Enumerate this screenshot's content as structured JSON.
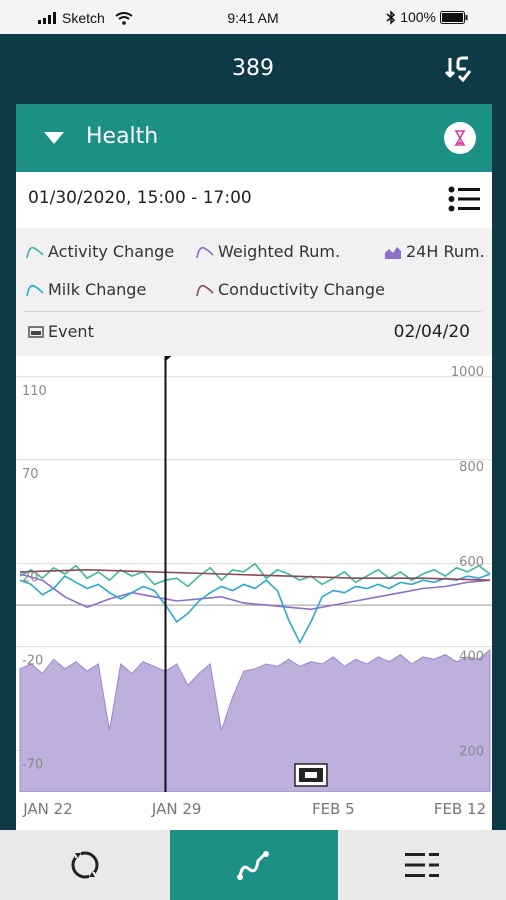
{
  "status_bar": {
    "carrier": "Sketch",
    "time": "9:41 AM",
    "battery": "100%"
  },
  "header": {
    "title": "389",
    "swap_icon": "swap-icon"
  },
  "card": {
    "title": "Health",
    "expand_icon": "triangle-down-icon",
    "badge_icon": "hourglass-icon",
    "date_range": "01/30/2020,  15:00 - 17:00",
    "menu_icon": "list-icon"
  },
  "legend": {
    "activity": "Activity Change",
    "weighted": "Weighted Rum.",
    "h24": "24H Rum.",
    "milk": "Milk Change",
    "conductivity": "Conductivity Change",
    "event": "Event",
    "event_date": "02/04/20"
  },
  "colors": {
    "accent": "#1c9084",
    "dark": "#0d3a46",
    "activity": "#3db8a3",
    "weighted": "#8d6fc9",
    "milk": "#2ba9d0",
    "conductivity": "#8b4a57",
    "rum24_fill": "#bfafdc"
  },
  "chart_data": {
    "type": "line",
    "x_labels": [
      "JAN 22",
      "JAN 29",
      "FEB 5",
      "FEB 12"
    ],
    "left_axis": {
      "ticks": [
        "110",
        "70",
        "20",
        "-20",
        "-70"
      ],
      "values": [
        110,
        70,
        20,
        -20,
        -70
      ],
      "range": [
        -90,
        120
      ]
    },
    "right_axis": {
      "ticks": [
        "1000",
        "800",
        "600",
        "400",
        "200"
      ],
      "values": [
        1000,
        800,
        600,
        400,
        200
      ],
      "range": [
        110,
        1030
      ]
    },
    "x_range": [
      0,
      21
    ],
    "cursor_day": 6.5,
    "event_day": 13,
    "series": [
      {
        "name": "Activity Change",
        "axis": "left",
        "x": [
          0,
          0.5,
          1,
          1.5,
          2,
          2.5,
          3,
          3.5,
          4,
          4.5,
          5,
          5.5,
          6,
          6.5,
          7,
          7.5,
          8,
          8.5,
          9,
          9.5,
          10,
          10.5,
          11,
          11.5,
          12,
          12.5,
          13,
          13.5,
          14,
          14.5,
          15,
          15.5,
          16,
          16.5,
          17,
          17.5,
          18,
          18.5,
          19,
          19.5,
          20,
          20.5,
          21
        ],
        "y": [
          14,
          17,
          13,
          18,
          15,
          19,
          13,
          16,
          12,
          17,
          14,
          16,
          10,
          12,
          13,
          9,
          14,
          18,
          12,
          17,
          16,
          20,
          13,
          17,
          15,
          12,
          14,
          10,
          13,
          16,
          11,
          14,
          17,
          13,
          16,
          12,
          15,
          17,
          14,
          18,
          16,
          19,
          15
        ]
      },
      {
        "name": "Weighted Rum.",
        "axis": "left",
        "x": [
          0,
          1,
          2,
          3,
          4,
          5,
          6,
          7,
          8,
          9,
          10,
          11,
          12,
          13,
          14,
          15,
          16,
          17,
          18,
          19,
          20,
          21
        ],
        "y": [
          15,
          12,
          4,
          -1,
          3,
          6,
          4,
          2,
          3,
          4,
          1,
          0,
          -1,
          -2,
          0,
          2,
          4,
          6,
          8,
          9,
          11,
          12
        ]
      },
      {
        "name": "Milk Change",
        "axis": "left",
        "x": [
          0,
          0.5,
          1,
          1.5,
          2,
          2.5,
          3,
          3.5,
          4,
          4.5,
          5,
          5.5,
          6,
          6.5,
          7,
          7.5,
          8,
          8.5,
          9,
          9.5,
          10,
          10.5,
          11,
          11.5,
          12,
          12.5,
          13,
          13.5,
          14,
          14.5,
          15,
          15.5,
          16,
          16.5,
          17,
          17.5,
          18,
          18.5,
          19,
          19.5,
          20,
          20.5,
          21
        ],
        "y": [
          12,
          10,
          5,
          8,
          14,
          11,
          8,
          10,
          6,
          3,
          6,
          9,
          7,
          0,
          -8,
          -4,
          2,
          6,
          9,
          7,
          10,
          8,
          12,
          7,
          -7,
          -18,
          -8,
          4,
          7,
          6,
          9,
          8,
          10,
          8,
          11,
          10,
          12,
          11,
          13,
          12,
          14,
          13,
          15
        ]
      },
      {
        "name": "Conductivity Change",
        "axis": "left",
        "x": [
          0,
          3,
          6,
          9,
          12,
          15,
          18,
          21
        ],
        "y": [
          16,
          17,
          16,
          15,
          14,
          13,
          13,
          12
        ]
      },
      {
        "name": "24H Rum.",
        "axis": "right",
        "x": [
          0,
          0.5,
          1,
          1.5,
          2,
          2.5,
          3,
          3.5,
          4,
          4.5,
          5,
          5.5,
          6,
          6.5,
          7,
          7.5,
          8,
          8.5,
          9,
          9.5,
          10,
          10.5,
          11,
          11.5,
          12,
          12.5,
          13,
          13.5,
          14,
          14.5,
          15,
          15.5,
          16,
          16.5,
          17,
          17.5,
          18,
          18.5,
          19,
          19.5,
          20,
          20.5,
          21
        ],
        "y": [
          370,
          380,
          360,
          390,
          370,
          385,
          365,
          380,
          240,
          380,
          360,
          385,
          375,
          365,
          380,
          335,
          360,
          380,
          240,
          310,
          365,
          370,
          380,
          375,
          390,
          375,
          385,
          380,
          395,
          375,
          390,
          380,
          395,
          385,
          400,
          380,
          395,
          390,
          400,
          385,
          395,
          390,
          410
        ]
      }
    ]
  },
  "nav": {
    "left_icon": "cycle-icon",
    "center_icon": "trend-icon",
    "right_icon": "list-menu-icon"
  }
}
